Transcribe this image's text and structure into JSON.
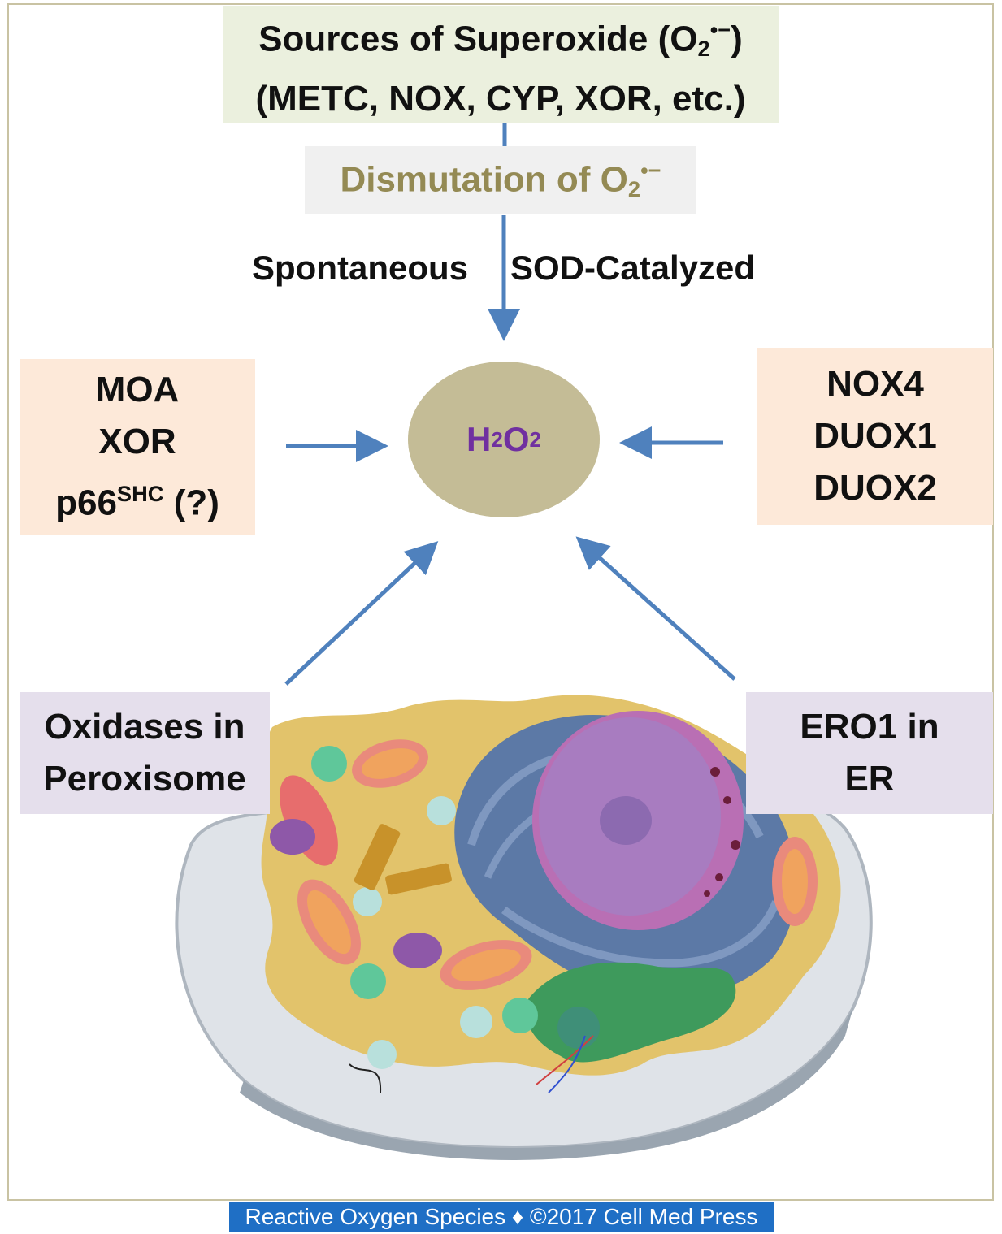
{
  "sources": {
    "line1": "Sources of Superoxide (O",
    "sub": "2",
    "sup": "•−",
    "line1_end": ")",
    "line2": "(METC, NOX, CYP, XOR, etc.)"
  },
  "dismutation": {
    "text": "Dismutation of O",
    "sub": "2",
    "sup": "•−"
  },
  "pathways": {
    "spontaneous": "Spontaneous",
    "sod": "SOD-Catalyzed"
  },
  "center": {
    "h": "H",
    "sub1": "2",
    "o": "O",
    "sub2": "2"
  },
  "left_sources": {
    "line1": "MOA",
    "line2": "XOR",
    "line3": "p66",
    "line3_sup": "SHC",
    "line3_end": " (?)"
  },
  "right_sources": {
    "line1": "NOX4",
    "line2": "DUOX1",
    "line3": "DUOX2"
  },
  "peroxisome": {
    "line1": "Oxidases in",
    "line2": "Peroxisome"
  },
  "er": {
    "line1": "ERO1 in",
    "line2": "ER"
  },
  "footer": {
    "text": "Reactive Oxygen Species ♦ ©2017 Cell Med Press"
  },
  "colors": {
    "arrow": "#4f81bd",
    "sources_bg": "#ebf0de",
    "dismutation_text": "#948a54",
    "h2o2_fill": "#c4bc96",
    "h2o2_text": "#7030a0",
    "peach_bg": "#fde9d9",
    "lavender_bg": "#e5dfec",
    "footer_bg": "#1f6fc5"
  }
}
